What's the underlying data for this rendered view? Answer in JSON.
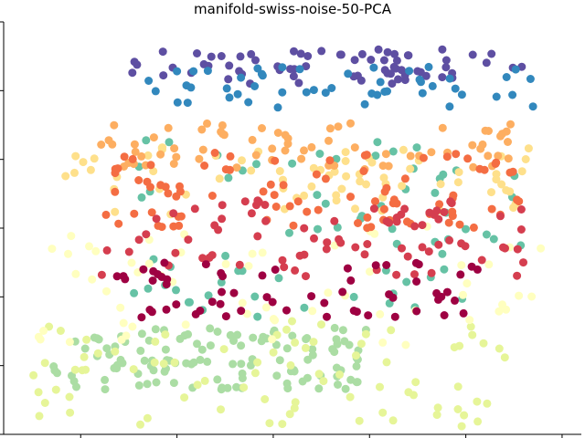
{
  "chart_data": {
    "type": "scatter",
    "title": "manifold-swiss-noise-50-PCA",
    "xlabel": "",
    "ylabel": "",
    "tick_labels_visible": false,
    "grid": false,
    "legend": "none",
    "colormap": "Spectral",
    "x_ticks": [
      -2.0,
      -1.0,
      0.0,
      1.0,
      2.0,
      3.0
    ],
    "y_ticks": [
      -2.0,
      -1.0,
      0.0,
      1.0,
      2.0,
      3.0,
      4.0
    ],
    "xlim": [
      -2.8,
      3.2
    ],
    "ylim": [
      -2.0,
      4.0
    ],
    "bands": [
      {
        "color_index": 0.97,
        "color": "#5e4fa2",
        "x_range": [
          -1.5,
          2.6
        ],
        "y_center": 3.35,
        "y_spread": 0.25,
        "n": 70
      },
      {
        "color_index": 0.85,
        "color": "#3288bd",
        "x_range": [
          -1.4,
          2.8
        ],
        "y_center": 3.05,
        "y_spread": 0.3,
        "n": 50
      },
      {
        "color_index": 0.78,
        "color": "#66c2a5",
        "x_range": [
          -1.5,
          2.6
        ],
        "y_center": 1.0,
        "y_spread": 1.3,
        "n": 70
      },
      {
        "color_index": 0.65,
        "color": "#abdda4",
        "x_range": [
          -2.3,
          1.0
        ],
        "y_center": -0.9,
        "y_spread": 0.45,
        "n": 120
      },
      {
        "color_index": 0.55,
        "color": "#e6f598",
        "x_range": [
          -2.5,
          2.5
        ],
        "y_center": -1.1,
        "y_spread": 0.8,
        "n": 80
      },
      {
        "color_index": 0.45,
        "color": "#ffffbf",
        "x_range": [
          -2.5,
          2.8
        ],
        "y_center": 0.2,
        "y_spread": 0.9,
        "n": 60
      },
      {
        "color_index": 0.35,
        "color": "#fee08b",
        "x_range": [
          -2.2,
          2.8
        ],
        "y_center": 1.7,
        "y_spread": 0.5,
        "n": 70
      },
      {
        "color_index": 0.28,
        "color": "#fdae61",
        "x_range": [
          -1.8,
          2.6
        ],
        "y_center": 2.2,
        "y_spread": 0.35,
        "n": 70
      },
      {
        "color_index": 0.18,
        "color": "#f46d43",
        "x_range": [
          -1.8,
          2.6
        ],
        "y_center": 1.55,
        "y_spread": 0.55,
        "n": 90
      },
      {
        "color_index": 0.1,
        "color": "#d53e4f",
        "x_range": [
          -1.8,
          2.6
        ],
        "y_center": 0.9,
        "y_spread": 0.6,
        "n": 80
      },
      {
        "color_index": 0.02,
        "color": "#9e0142",
        "x_range": [
          -1.8,
          2.2
        ],
        "y_center": 0.1,
        "y_spread": 0.4,
        "n": 60
      }
    ]
  }
}
